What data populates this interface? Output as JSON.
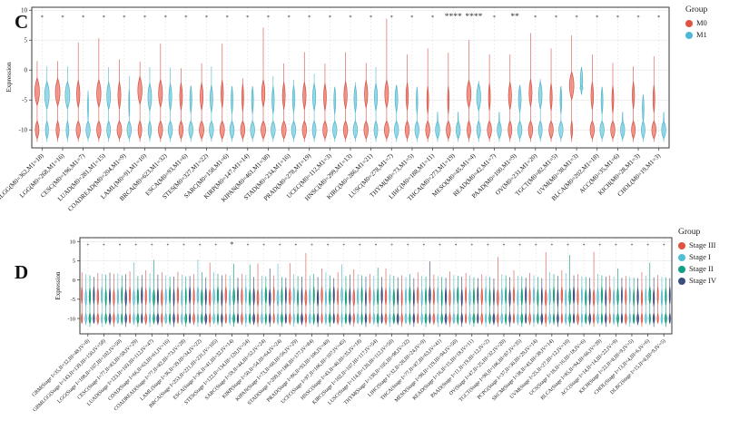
{
  "figure": {
    "panels": [
      {
        "label": "C",
        "ylabel": "Expression"
      },
      {
        "label": "D",
        "ylabel": "Expression"
      }
    ]
  },
  "chart_data": [
    {
      "type": "violin",
      "panel": "C",
      "title": "",
      "xlabel": "",
      "ylabel": "Expression",
      "ylim": [
        -13,
        10.5
      ],
      "yticks": [
        10,
        5,
        0,
        -5,
        -10
      ],
      "grid": true,
      "bottom_cluster_at": -10,
      "legend": {
        "title": "Group",
        "position": "right-top",
        "entries": [
          {
            "label": "M0",
            "color": "#E2533F"
          },
          {
            "label": "M1",
            "color": "#4FB8D8"
          }
        ]
      },
      "categories": [
        "GBMLGG(M0=362,M1=18)",
        "LGG(M0=268,M1=16)",
        "CESC(M0=196,M1=7)",
        "LUAD(M0=281,M1=15)",
        "COADREAD(M0=204,M1=9)",
        "LAML(M0=91,M1=10)",
        "BRCA(M0=623,M1=32)",
        "ESCA(M0=93,M1=6)",
        "STES(M0=327,M1=22)",
        "SARC(M0=158,M1=6)",
        "KIRP(M0=147,M1=14)",
        "KIPAN(M0=461,M1=38)",
        "STAD(M0=234,M1=16)",
        "PRAD(M0=278,M1=19)",
        "UCEC(M0=112,M1=3)",
        "HNSC(M0=299,M1=13)",
        "KIRC(M0=286,M1=21)",
        "LUSC(M0=278,M1=7)",
        "THYM(M0=73,M1=5)",
        "LIHC(M0=188,M1=11)",
        "THCA(M0=273,M1=19)",
        "MESO(M0=45,M1=4)",
        "READ(M0=42,M1=7)",
        "PAAD(M0=100,M1=9)",
        "OV(M0=231,M1=20)",
        "TGCT(M0=82,M1=5)",
        "UVM(M0=38,M1=3)",
        "BLCA(M0=202,M1=18)",
        "ACC(M0=35,M1=6)",
        "KICH(M0=28,M1=3)",
        "CHOL(M0=19,M1=3)"
      ],
      "significance": [
        "*",
        "*",
        "*",
        "*",
        "*",
        "*",
        "*",
        "*",
        "*",
        "*",
        "*",
        "*",
        "*",
        "*",
        "*",
        "*",
        "*",
        "*",
        "*",
        "*",
        "****",
        "****",
        "*",
        "**",
        "*",
        "*",
        "*",
        "*",
        "*",
        "*",
        "*"
      ],
      "violin_format": "[tail_top_expr, body_center_expr, body_halfwidth_px, bottom_blob_halfwidth_px, optional_tail_min_expr, optional_extra_dot_expr]",
      "series": [
        {
          "name": "M0",
          "stroke": "#D85749",
          "fill": "#F0897D",
          "violins": [
            [
              1.5,
              -3.6,
              5.0,
              4.0
            ],
            [
              1.5,
              -3.7,
              5.0,
              3.6
            ],
            [
              4.6,
              -4.0,
              3.6,
              4.6
            ],
            [
              5.3,
              -3.9,
              4.6,
              4.6
            ],
            [
              1.8,
              -4.2,
              3.2,
              5.0
            ],
            [
              1.4,
              -3.4,
              4.6,
              4.0
            ],
            [
              4.4,
              -3.9,
              4.2,
              4.6
            ],
            [
              0.3,
              -4.4,
              3.0,
              4.6
            ],
            [
              1.1,
              -4.4,
              3.2,
              5.0
            ],
            [
              4.4,
              -4.0,
              2.6,
              5.0
            ],
            [
              -1.4,
              -4.6,
              2.0,
              4.6
            ],
            [
              7.1,
              -3.9,
              3.6,
              5.0
            ],
            [
              1.1,
              -4.3,
              3.0,
              5.0
            ],
            [
              3.0,
              -4.3,
              3.6,
              4.6
            ],
            [
              1.1,
              -4.5,
              3.0,
              4.6
            ],
            [
              3.0,
              -4.2,
              3.6,
              4.6
            ],
            [
              1.2,
              -4.0,
              3.6,
              4.6
            ],
            [
              8.6,
              -4.0,
              4.0,
              5.0
            ],
            [
              2.6,
              -4.4,
              2.6,
              4.6
            ],
            [
              3.6,
              -5.0,
              1.9,
              4.6
            ],
            [
              2.9,
              -5.0,
              1.6,
              4.6
            ],
            [
              5.0,
              -4.0,
              4.6,
              4.0
            ],
            [
              2.6,
              -4.5,
              2.0,
              4.6
            ],
            [
              2.6,
              -4.3,
              3.4,
              4.0
            ],
            [
              6.2,
              -3.8,
              3.2,
              4.6
            ],
            [
              3.6,
              -4.5,
              2.4,
              4.6
            ],
            [
              5.8,
              -2.6,
              4.8,
              2.0
            ],
            [
              2.6,
              -4.3,
              2.8,
              4.6
            ],
            [
              1.2,
              -4.9,
              2.0,
              4.6
            ],
            [
              0.6,
              -4.2,
              2.4,
              4.0
            ],
            [
              2.3,
              -4.8,
              2.0,
              4.6
            ]
          ]
        },
        {
          "name": "M1",
          "stroke": "#56B9D0",
          "fill": "#8ED4E2",
          "violins": [
            [
              0.6,
              -4.2,
              5.0,
              3.4
            ],
            [
              0.6,
              -4.2,
              5.0,
              3.0
            ],
            [
              -3.4,
              -6.0,
              0.9,
              4.6
            ],
            [
              0.5,
              -4.3,
              4.0,
              4.0
            ],
            [
              -1.0,
              -5.5,
              1.0,
              4.6
            ],
            [
              0.5,
              -4.5,
              4.0,
              3.4
            ],
            [
              0.4,
              -4.5,
              3.2,
              4.6
            ],
            [
              -4.2,
              -4.9,
              2.2,
              4.6
            ],
            [
              0.6,
              -4.8,
              3.0,
              4.6
            ],
            [
              -2.9,
              -5.0,
              2.0,
              4.6
            ],
            [
              -3.2,
              -5.0,
              2.0,
              4.6
            ],
            [
              -1.0,
              -5.0,
              2.6,
              4.6
            ],
            [
              -1.6,
              -4.8,
              2.6,
              4.6
            ],
            [
              -0.6,
              -4.5,
              3.4,
              4.0
            ],
            [
              -4.6,
              -5.1,
              2.0,
              4.6
            ],
            [
              -2.0,
              -4.8,
              3.0,
              4.6
            ],
            [
              0.5,
              -4.5,
              3.4,
              4.0
            ],
            [
              -2.5,
              -4.8,
              3.0,
              4.6
            ],
            [
              -4.3,
              -5.1,
              1.6,
              4.6
            ],
            [
              -8.0,
              -9.3,
              0.6,
              4.6
            ],
            [
              -8.0,
              -9.3,
              0.6,
              4.6
            ],
            [
              -1.8,
              -4.5,
              4.4,
              4.0
            ],
            [
              -8.0,
              -9.3,
              0.6,
              4.6
            ],
            [
              -2.8,
              -4.8,
              3.0,
              4.6
            ],
            [
              -1.5,
              -4.2,
              3.8,
              4.0
            ],
            [
              -2.8,
              -5.0,
              1.8,
              4.6
            ],
            [
              -1.2,
              -1.8,
              2.6,
              0,
              -3.4,
              -3.0
            ],
            [
              -4.0,
              -5.1,
              2.0,
              4.6
            ],
            [
              -8.0,
              -9.3,
              0.6,
              4.6
            ],
            [
              -5.6,
              -6.4,
              1.8,
              4.0
            ],
            [
              -8.0,
              -9.3,
              0.6,
              4.6
            ]
          ]
        }
      ]
    },
    {
      "type": "violin",
      "panel": "D",
      "title": "",
      "xlabel": "",
      "ylabel": "Expression",
      "ylim": [
        -14,
        11
      ],
      "yticks": [
        10,
        5,
        0,
        -5,
        -10
      ],
      "grid": true,
      "bottom_cluster_at": -10,
      "legend": {
        "title": "Group",
        "position": "right-top",
        "entries": [
          {
            "label": "Stage III",
            "color": "#E2533F"
          },
          {
            "label": "Stage I",
            "color": "#52C0D4"
          },
          {
            "label": "Stage II",
            "color": "#12A084"
          },
          {
            "label": "Stage IV",
            "color": "#3A4F80"
          }
        ]
      },
      "series_names": [
        "Stage III",
        "Stage I",
        "Stage II",
        "Stage IV"
      ],
      "series_colors": [
        {
          "stroke": "#D85749",
          "fill": "#F0897D"
        },
        {
          "stroke": "#56B9D0",
          "fill": "#8ED4E2"
        },
        {
          "stroke": "#0E9A78",
          "fill": "#2FAE94"
        },
        {
          "stroke": "#39497B",
          "fill": "#4C5F95"
        }
      ],
      "categories": [
        "GBM(Stage I=35,II=32,III=48,IV=8)",
        "GBMLGG(Stage I=143,II=139,III=150,IV=58)",
        "LGG(Stage I=108,II=107,III=102,IV=50)",
        "CESC(Stage I=77,II=83,III=58,IV=29)",
        "LUAD(Stage I=123,II=103,III=112,IV=47)",
        "COAD(Stage I=66,II=63,III=61,IV=16)",
        "COADREAD(Stage I=77,II=82,III=73,IV=28)",
        "LAML(Stage I=36,II=39,III=34,IV=22)",
        "BRCA(Stage I=253,II=221,III=231,IV=105)",
        "ESCA(Stage I=36,II=41,III=32,IV=14)",
        "STES(Stage I=122,II=134,III=120,IV=54)",
        "SARC(Stage I=59,II=44,III=52,IV=24)",
        "KIRP(Stage I=50,II=54,III=64,IV=24)",
        "KIPAN(Stage I=73,II=60,III=56,IV=29)",
        "STAD(Stage I=209,II=188,III=177,IV=84)",
        "PRAD(Stage I=86,II=93,III=106,IV=40)",
        "UCEC(Stage I=97,II=106,III=107,IV=45)",
        "HNSC(Stage I=43,II=40,III=35,IV=18)",
        "KIRC(Stage I=102,II=107,III=117,IV=54)",
        "LUSC(Stage I=114,II=120,III=112,IV=50)",
        "THYM(Stage I=130,II=105,III=98,IV=32)",
        "LIHC(Stage I=32,II=28,III=24,IV=9)",
        "THCA(Stage I=77,II=87,III=63,IV=41)",
        "MESO(Stage I=98,II=119,III=94,IV=50)",
        "READ(Stage I=16,II=15,III=18,IV=11)",
        "PAAD(Stage I=11,II=19,III=12,IV=2)",
        "OV(Stage I=47,II=25,III=32,IV=20)",
        "TGCT(Stage I=90,II=106,III=87,IV=35)",
        "PCPG(Stage I=37,II=30,III=29,IV=14)",
        "SKCM(Stage I=38,II=43,III=38,IV=14)",
        "UVM(Stage I=25,II=27,III=12,IV=10)",
        "UCS(Stage I=18,II=16,III=18,IV=6)",
        "BLCA(Stage I=85,II=94,III=66,IV=39)",
        "ACC(Stage I=14,II=14,III=22,IV=9)",
        "KICH(Stage I=22,II=8,III=9,IV=5)",
        "CHOL(Stage I=13,II=4,III=6,IV=6)",
        "DLBC(Stage I=15,II=8,III=9,IV=5)"
      ],
      "significance": [
        "*",
        "*",
        "*",
        "*",
        "*",
        "*",
        "*",
        "*",
        "*",
        "*",
        "*",
        "*",
        "*",
        "*",
        "*",
        "*",
        "*",
        "*",
        "*",
        "*",
        "*",
        "*",
        "*",
        "*",
        "*",
        "*",
        "*",
        "*",
        "*",
        "*",
        "*",
        "*",
        "*",
        "*",
        "*",
        "*",
        "*"
      ],
      "significance_big_index": 9,
      "tail_tops_note": "estimated upper tail of each violin (expression units), order = series_names",
      "tail_tops": [
        [
          2.0,
          1.5,
          1.2,
          0.8
        ],
        [
          1.8,
          1.6,
          1.4,
          1.9
        ],
        [
          1.6,
          1.7,
          1.2,
          1.5
        ],
        [
          2.2,
          4.6,
          1.0,
          1.3
        ],
        [
          2.5,
          1.8,
          5.2,
          1.4
        ],
        [
          2.0,
          1.2,
          0.8,
          0.9
        ],
        [
          2.1,
          1.4,
          0.9,
          1.0
        ],
        [
          1.5,
          5.3,
          2.0,
          0.7
        ],
        [
          4.5,
          2.0,
          1.6,
          1.2
        ],
        [
          1.5,
          1.2,
          4.2,
          0.6
        ],
        [
          1.6,
          1.3,
          4.0,
          0.8
        ],
        [
          4.3,
          1.1,
          0.9,
          3.0
        ],
        [
          1.2,
          4.2,
          0.8,
          0.6
        ],
        [
          4.4,
          1.5,
          1.0,
          0.9
        ],
        [
          7.0,
          1.2,
          1.6,
          0.8
        ],
        [
          3.0,
          2.0,
          1.2,
          0.5
        ],
        [
          2.0,
          4.1,
          1.0,
          1.4
        ],
        [
          2.8,
          1.5,
          1.2,
          0.9
        ],
        [
          1.6,
          1.1,
          3.2,
          0.8
        ],
        [
          3.0,
          1.4,
          1.1,
          0.7
        ],
        [
          1.2,
          0.8,
          1.5,
          0.5
        ],
        [
          2.0,
          1.1,
          0.9,
          4.8
        ],
        [
          1.4,
          1.0,
          0.8,
          0.6
        ],
        [
          2.2,
          1.3,
          1.1,
          0.9
        ],
        [
          1.8,
          1.2,
          0.7,
          0.5
        ],
        [
          1.5,
          1.0,
          0.8,
          0.4
        ],
        [
          6.0,
          1.5,
          1.2,
          0.8
        ],
        [
          2.5,
          1.1,
          0.9,
          0.6
        ],
        [
          1.8,
          1.2,
          0.8,
          0.5
        ],
        [
          7.2,
          2.0,
          1.5,
          1.0
        ],
        [
          2.5,
          1.8,
          6.5,
          1.2
        ],
        [
          1.5,
          1.0,
          0.8,
          0.6
        ],
        [
          7.3,
          1.6,
          1.2,
          0.9
        ],
        [
          1.2,
          0.9,
          3.0,
          0.6
        ],
        [
          1.0,
          0.8,
          0.6,
          0.5
        ],
        [
          2.0,
          1.1,
          4.5,
          0.7
        ],
        [
          1.3,
          0.9,
          0.7,
          0.5
        ]
      ]
    }
  ]
}
